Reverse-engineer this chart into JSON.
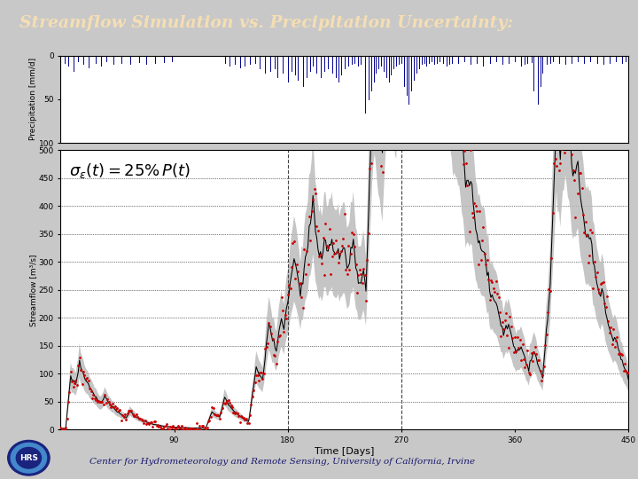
{
  "title": "Streamflow Simulation vs. Precipitation Uncertainty:",
  "title_color": "#F5DEB3",
  "title_bg_color": "#1a1a6e",
  "header_stripe_red": "#cc0000",
  "header_stripe_blue": "#2233aa",
  "footer_text": "Center for Hydrometeorology and Remote Sensing, University of California, Irvine",
  "footer_color": "#1a1a6e",
  "footer_stripe_color": "#cc0000",
  "bg_color": "#c8c8c8",
  "plot_bg_color": "#ffffff",
  "equation_text": "$\\sigma_{\\varepsilon}(t) = 25\\%\\, P(t)$",
  "precip_ylabel": "Precipitation [mm/d]",
  "streamflow_ylabel": "Streamflow [m³/s]",
  "time_xlabel": "Time [Days]",
  "precip_ylim": [
    100,
    0
  ],
  "precip_yticks": [
    0,
    50,
    100
  ],
  "streamflow_ylim": [
    0,
    500
  ],
  "streamflow_yticks": [
    0,
    50,
    100,
    150,
    200,
    250,
    300,
    350,
    400,
    450,
    500
  ],
  "time_xlim": [
    0,
    450
  ],
  "time_xticks": [
    90,
    180,
    270,
    360,
    450
  ],
  "precip_color": "#00008B",
  "streamflow_obs_color": "#cc0000",
  "streamflow_sim_color": "#000000",
  "uncertainty_color": "#bbbbbb",
  "vline_color": "#333333",
  "hline_color": "#000000"
}
